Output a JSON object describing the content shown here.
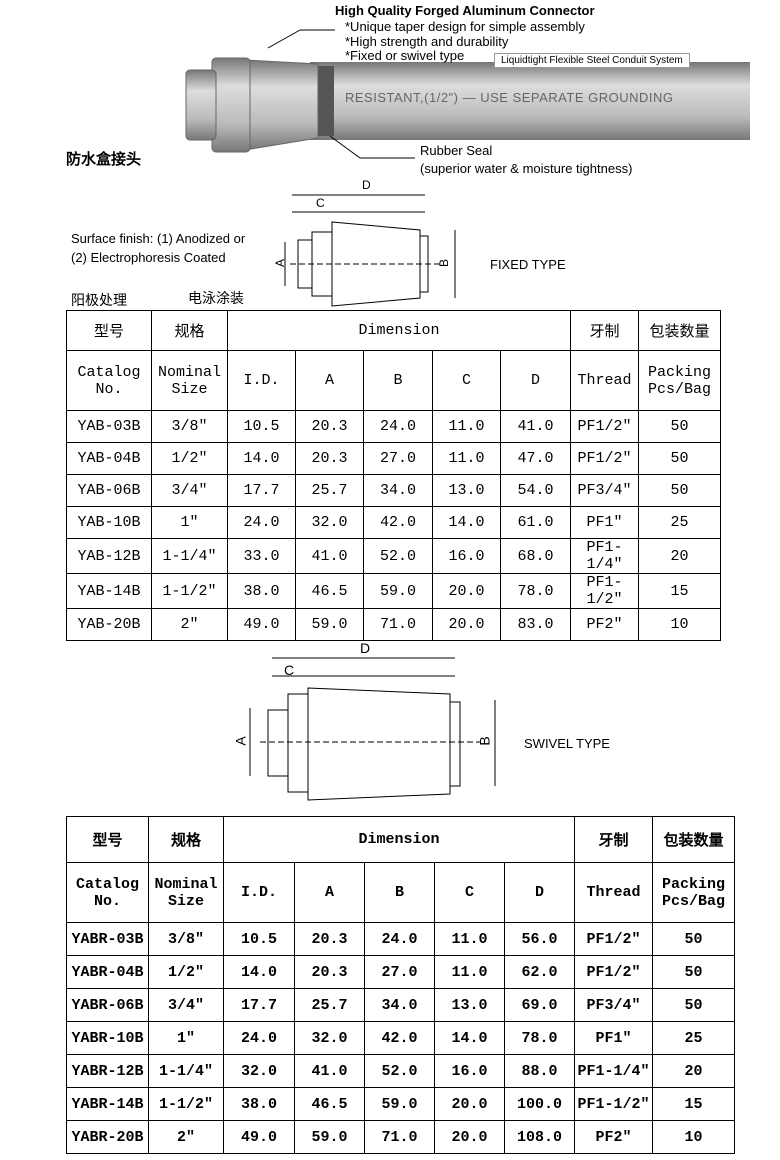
{
  "header": {
    "title": "High Quality Forged Aluminum Connector",
    "features": [
      "*Unique taper design for simple assembly",
      "*High strength and durability",
      "*Fixed or swivel type"
    ],
    "badge": "Liquidtight Flexible Steel Conduit System",
    "conduit_print": "RESISTANT,(1/2\")  —  USE  SEPARATE  GROUNDING",
    "seal_label": "Rubber Seal",
    "seal_note": "(superior water & moisture tightness)",
    "product_name_cn": "防水盒接头"
  },
  "finish": {
    "lines": [
      "Surface finish: (1) Anodized or",
      "(2) Electrophoresis Coated"
    ],
    "labels_cn": [
      "阳极处理",
      "电泳涂装"
    ]
  },
  "fixed_diagram": {
    "d": "D",
    "c": "C",
    "a": "A",
    "b": "B",
    "caption": "FIXED TYPE"
  },
  "swivel_diagram": {
    "d": "D",
    "c": "C",
    "a": "A",
    "b": "B",
    "caption": "SWIVEL TYPE"
  },
  "tables": [
    {
      "group_headers": [
        "型号",
        "规格",
        "Dimension",
        "牙制",
        "包装数量"
      ],
      "columns": [
        "Catalog\nNo.",
        "Nominal\nSize",
        "I.D.",
        "A",
        "B",
        "C",
        "D",
        "Thread",
        "Packing\nPcs/Bag"
      ],
      "rows": [
        [
          "YAB-03B",
          "3/8″",
          "10.5",
          "20.3",
          "24.0",
          "11.0",
          "41.0",
          "PF1/2″",
          "50"
        ],
        [
          "YAB-04B",
          "1/2″",
          "14.0",
          "20.3",
          "27.0",
          "11.0",
          "47.0",
          "PF1/2″",
          "50"
        ],
        [
          "YAB-06B",
          "3/4″",
          "17.7",
          "25.7",
          "34.0",
          "13.0",
          "54.0",
          "PF3/4″",
          "50"
        ],
        [
          "YAB-10B",
          "1″",
          "24.0",
          "32.0",
          "42.0",
          "14.0",
          "61.0",
          "PF1″",
          "25"
        ],
        [
          "YAB-12B",
          "1-1/4″",
          "33.0",
          "41.0",
          "52.0",
          "16.0",
          "68.0",
          "PF1-1/4″",
          "20"
        ],
        [
          "YAB-14B",
          "1-1/2″",
          "38.0",
          "46.5",
          "59.0",
          "20.0",
          "78.0",
          "PF1-1/2″",
          "15"
        ],
        [
          "YAB-20B",
          "2″",
          "49.0",
          "59.0",
          "71.0",
          "20.0",
          "83.0",
          "PF2″",
          "10"
        ]
      ]
    },
    {
      "group_headers": [
        "型号",
        "规格",
        "Dimension",
        "牙制",
        "包装数量"
      ],
      "columns": [
        "Catalog\nNo.",
        "Nominal\nSize",
        "I.D.",
        "A",
        "B",
        "C",
        "D",
        "Thread",
        "Packing\nPcs/Bag"
      ],
      "rows": [
        [
          "YABR-03B",
          "3/8″",
          "10.5",
          "20.3",
          "24.0",
          "11.0",
          "56.0",
          "PF1/2″",
          "50"
        ],
        [
          "YABR-04B",
          "1/2″",
          "14.0",
          "20.3",
          "27.0",
          "11.0",
          "62.0",
          "PF1/2″",
          "50"
        ],
        [
          "YABR-06B",
          "3/4″",
          "17.7",
          "25.7",
          "34.0",
          "13.0",
          "69.0",
          "PF3/4″",
          "50"
        ],
        [
          "YABR-10B",
          "1″",
          "24.0",
          "32.0",
          "42.0",
          "14.0",
          "78.0",
          "PF1″",
          "25"
        ],
        [
          "YABR-12B",
          "1-1/4″",
          "32.0",
          "41.0",
          "52.0",
          "16.0",
          "88.0",
          "PF1-1/4″",
          "20"
        ],
        [
          "YABR-14B",
          "1-1/2″",
          "38.0",
          "46.5",
          "59.0",
          "20.0",
          "100.0",
          "PF1-1/2″",
          "15"
        ],
        [
          "YABR-20B",
          "2″",
          "49.0",
          "59.0",
          "71.0",
          "20.0",
          "108.0",
          "PF2″",
          "10"
        ]
      ]
    }
  ]
}
